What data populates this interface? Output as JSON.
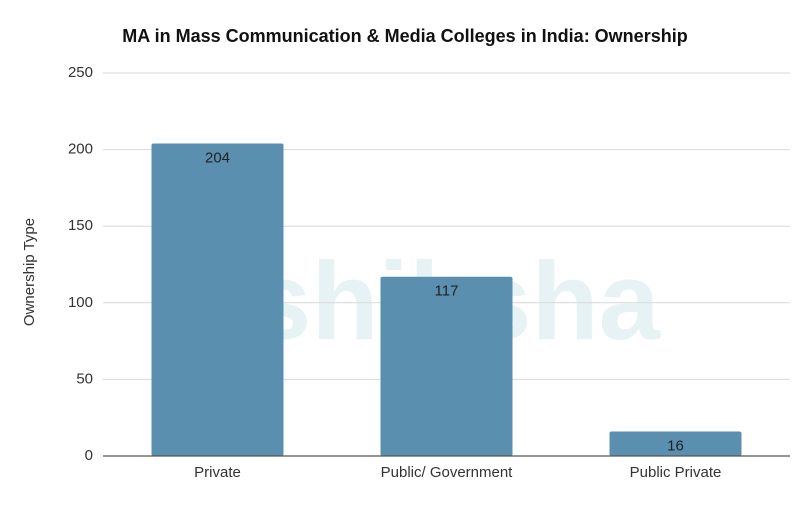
{
  "chart_data": {
    "type": "bar",
    "title": "MA in Mass Communication & Media Colleges in India: Ownership",
    "y_label": "Ownership Type",
    "watermark": "shiksha",
    "categories": [
      "Private",
      "Public/ Government",
      "Public Private"
    ],
    "values": [
      204,
      117,
      16
    ],
    "color": "#5b8fb0",
    "ylim": [
      0,
      250
    ],
    "yticks": [
      0,
      50,
      100,
      150,
      200,
      250
    ],
    "grid": true
  }
}
